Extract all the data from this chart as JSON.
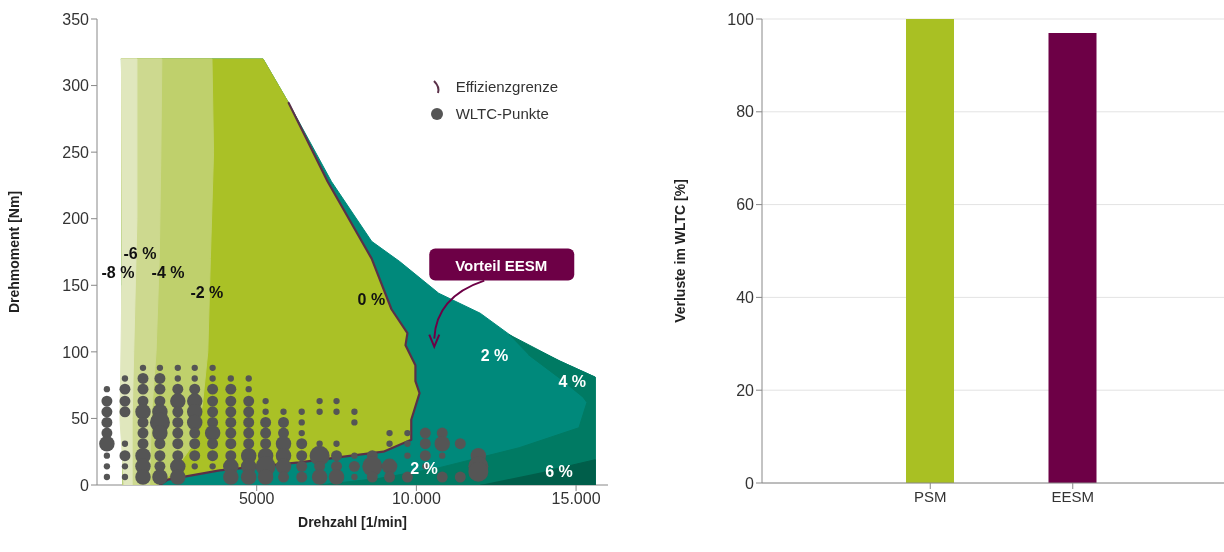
{
  "chart_data": [
    {
      "type": "area",
      "xlabel": "Drehzahl [1/min]",
      "ylabel": "Drehmoment [Nm]",
      "xlim": [
        0,
        16000
      ],
      "xticks": [
        {
          "value": 5000,
          "label": "5000"
        },
        {
          "value": 10000,
          "label": "10.000"
        },
        {
          "value": 15000,
          "label": "15.000"
        }
      ],
      "ylim": [
        0,
        350
      ],
      "yticks": [
        0,
        50,
        100,
        150,
        200,
        250,
        300,
        350
      ],
      "legend": "top right",
      "series": [
        {
          "type": "area",
          "color": "#00897b",
          "x": [
            750,
            5200,
            6000,
            7340,
            8600,
            9470,
            10700,
            12000,
            13200,
            14500,
            15600,
            15600,
            800
          ],
          "values": [
            320,
            320,
            287,
            228,
            183,
            168,
            144,
            129,
            108,
            93,
            81,
            0,
            0
          ]
        },
        {
          "type": "area",
          "color": "#007a63",
          "x": [
            12900,
            14500,
            15600,
            15600,
            6970,
            8840,
            10720,
            13220,
            15090,
            15340,
            15220,
            14500,
            13500
          ],
          "values": [
            113,
            93,
            81,
            0,
            0,
            5,
            13,
            28,
            43,
            62,
            66,
            80,
            98
          ]
        },
        {
          "type": "area",
          "color": "#005e4a",
          "x": [
            12000,
            15600,
            15600,
            14000
          ],
          "values": [
            0,
            0,
            19,
            10
          ]
        },
        {
          "type": "area",
          "color": "#aac126",
          "x": [
            750,
            5200,
            6000,
            7220,
            8600,
            9220,
            9720,
            9660,
            9970,
            9970,
            10100,
            9840,
            9840,
            8970,
            7970,
            6340,
            3840,
            2220,
            1970,
            800
          ],
          "values": [
            320,
            320,
            287,
            228,
            170,
            132,
            114,
            105,
            90,
            78,
            69,
            49,
            34,
            25,
            22,
            17,
            11,
            4,
            0,
            0
          ]
        },
        {
          "type": "area",
          "color": "#bfd06c",
          "x": [
            750,
            3600,
            3650,
            3550,
            3470,
            3300,
            3000,
            2400,
            1970,
            800
          ],
          "values": [
            320,
            320,
            250,
            170,
            100,
            60,
            30,
            10,
            0,
            0
          ]
        },
        {
          "type": "area",
          "color": "#cdd98f",
          "x": [
            750,
            2030,
            2000,
            1950,
            1850,
            1700,
            1650,
            800
          ],
          "values": [
            320,
            320,
            250,
            170,
            100,
            50,
            0,
            0
          ]
        },
        {
          "type": "area",
          "color": "#e0e7bd",
          "x": [
            750,
            1250,
            1250,
            1150,
            1100,
            1100,
            850,
            720,
            780
          ],
          "values": [
            320,
            320,
            200,
            100,
            50,
            0,
            0,
            49,
            150
          ]
        },
        {
          "type": "line",
          "name": "Effizienzgrenze",
          "color": "#5a3048",
          "x": [
            6000,
            7220,
            8600,
            9220,
            9720,
            9660,
            9970,
            9970,
            10100,
            9840,
            9840,
            8970,
            7970,
            6340,
            3840,
            2220,
            1970
          ],
          "values": [
            287,
            228,
            170,
            132,
            114,
            105,
            90,
            78,
            69,
            49,
            34,
            25,
            22,
            17,
            11,
            4,
            0
          ]
        },
        {
          "type": "bubble",
          "name": "WLTC-Punkte",
          "color": "#555555",
          "x": [
            310,
            310,
            310,
            310,
            310,
            310,
            310,
            310,
            310,
            875,
            875,
            875,
            875,
            875,
            875,
            875,
            875,
            1440,
            1440,
            1440,
            1440,
            1440,
            1440,
            1440,
            1440,
            1440,
            1440,
            1440,
            1970,
            1970,
            1970,
            1970,
            1970,
            1970,
            1970,
            1970,
            1970,
            1970,
            1970,
            2530,
            2530,
            2530,
            2530,
            2530,
            2530,
            2530,
            2530,
            2530,
            2530,
            2530,
            3060,
            3060,
            3060,
            3060,
            3060,
            3060,
            3060,
            3060,
            3060,
            3060,
            3620,
            3620,
            3620,
            3620,
            3620,
            3620,
            3620,
            3620,
            3620,
            3620,
            4190,
            4190,
            4190,
            4190,
            4190,
            4190,
            4190,
            4190,
            4190,
            4190,
            4750,
            4750,
            4750,
            4750,
            4750,
            4750,
            4750,
            4750,
            4750,
            4750,
            5280,
            5280,
            5280,
            5280,
            5280,
            5280,
            5280,
            5280,
            5840,
            5840,
            5840,
            5840,
            5840,
            5840,
            5840,
            6410,
            6410,
            6410,
            6410,
            6410,
            6410,
            6410,
            6970,
            6970,
            6970,
            6970,
            6970,
            6970,
            7500,
            7500,
            7500,
            7500,
            7500,
            7500,
            8060,
            8060,
            8060,
            8060,
            8060,
            8620,
            8620,
            8620,
            9160,
            9160,
            9160,
            9160,
            9720,
            9720,
            9720,
            9720,
            10280,
            10280,
            10280,
            10280,
            10810,
            10810,
            10810,
            10810,
            11375,
            11375,
            11940,
            11940,
            11940
          ],
          "values": [
            72,
            63,
            55,
            47,
            39,
            31,
            22,
            14,
            6,
            80,
            72,
            63,
            55,
            31,
            22,
            14,
            6,
            88,
            80,
            72,
            63,
            55,
            47,
            39,
            31,
            22,
            14,
            6,
            88,
            80,
            72,
            63,
            55,
            47,
            39,
            31,
            22,
            14,
            6,
            88,
            80,
            72,
            63,
            55,
            47,
            39,
            31,
            22,
            14,
            6,
            88,
            80,
            72,
            63,
            55,
            47,
            39,
            31,
            22,
            14,
            88,
            80,
            72,
            63,
            55,
            47,
            39,
            31,
            22,
            14,
            80,
            72,
            63,
            55,
            47,
            39,
            31,
            22,
            14,
            6,
            80,
            72,
            63,
            55,
            47,
            39,
            31,
            22,
            14,
            6,
            63,
            55,
            47,
            39,
            31,
            22,
            14,
            6,
            55,
            47,
            39,
            31,
            22,
            14,
            6,
            55,
            47,
            39,
            31,
            22,
            14,
            6,
            63,
            55,
            31,
            22,
            14,
            6,
            63,
            55,
            31,
            22,
            14,
            6,
            55,
            47,
            22,
            14,
            6,
            22,
            14,
            6,
            39,
            31,
            14,
            6,
            39,
            31,
            22,
            6,
            39,
            31,
            22,
            14,
            39,
            31,
            22,
            6,
            31,
            6,
            22,
            14,
            10
          ],
          "sizes": [
            0.1,
            0.3,
            0.3,
            0.3,
            0.3,
            0.6,
            0.1,
            0.1,
            0.1,
            0.1,
            0.3,
            0.3,
            0.3,
            0.1,
            0.3,
            0.1,
            0.1,
            0.1,
            0.3,
            0.3,
            0.3,
            0.6,
            0.3,
            0.3,
            0.3,
            0.6,
            0.6,
            0.6,
            0.1,
            0.3,
            0.3,
            0.3,
            0.6,
            1,
            0.6,
            0.3,
            0.3,
            0.3,
            0.6,
            0.1,
            0.1,
            0.3,
            0.6,
            0.3,
            0.3,
            0.3,
            0.3,
            0.3,
            0.6,
            0.6,
            0.1,
            0.1,
            0.3,
            0.6,
            0.6,
            0.6,
            0.3,
            0.3,
            0.3,
            0.1,
            0.1,
            0.1,
            0.3,
            0.3,
            0.3,
            0.3,
            0.6,
            0.3,
            0.3,
            0.1,
            0.1,
            0.3,
            0.3,
            0.3,
            0.3,
            0.3,
            0.3,
            0.3,
            0.6,
            0.6,
            0.1,
            0.1,
            0.3,
            0.3,
            0.3,
            0.3,
            0.3,
            0.6,
            0.6,
            0.6,
            0.1,
            0.1,
            0.3,
            0.3,
            0.3,
            0.6,
            1,
            0.6,
            0.1,
            0.3,
            0.3,
            0.6,
            0.6,
            0.6,
            0.3,
            0.1,
            0.1,
            0.1,
            0.3,
            0.3,
            0.3,
            0.3,
            0.1,
            0.1,
            0.1,
            1,
            0.3,
            0.6,
            0.1,
            0.1,
            0.1,
            0.3,
            0.3,
            0.6,
            0.1,
            0.1,
            0.1,
            0.3,
            0.1,
            0.3,
            1,
            0.3,
            0.1,
            0.1,
            0.6,
            0.3,
            0.1,
            0.1,
            0.1,
            0.3,
            0.3,
            0.3,
            0.3,
            0.1,
            0.3,
            0.6,
            0.1,
            0.3,
            0.3,
            0.3,
            0.6,
            1,
            1
          ]
        }
      ],
      "annotations": [
        "-6 %",
        "-8 %",
        "-4 %",
        "-2 %",
        "0 %",
        "2 %",
        "4 %",
        "2 %",
        "6 %",
        "Vorteil EESM"
      ]
    },
    {
      "type": "bar",
      "ylabel": "Verluste im WLTC [%]",
      "categories": [
        "PSM",
        "EESM"
      ],
      "values": [
        100,
        97
      ],
      "colors": [
        "#a9c023",
        "#6d0046"
      ],
      "ylim": [
        0,
        100
      ],
      "yticks": [
        0,
        20,
        40,
        60,
        80,
        100
      ],
      "grid": "y"
    }
  ]
}
